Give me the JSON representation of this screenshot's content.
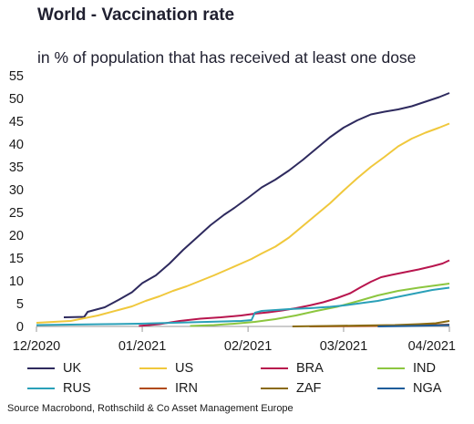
{
  "title": "World - Vaccination rate",
  "subtitle": "in % of population that has received at least one dose",
  "source": "Source Macrobond, Rothschild & Co Asset Management Europe",
  "chart_data": {
    "type": "line",
    "x_ticks": [
      "12/2020",
      "01/2021",
      "02/2021",
      "03/2021",
      "04/2021"
    ],
    "x_tick_days": [
      0,
      31,
      62,
      90,
      121
    ],
    "x_range": [
      0,
      121
    ],
    "ylim": [
      0,
      55
    ],
    "y_ticks": [
      0,
      5,
      10,
      15,
      20,
      25,
      30,
      35,
      40,
      45,
      50,
      55
    ],
    "grid": false,
    "legend_position": "bottom",
    "series": [
      {
        "name": "UK",
        "color": "#2e2a5e",
        "points": [
          [
            8,
            2.0
          ],
          [
            14,
            2.1
          ],
          [
            15,
            3.2
          ],
          [
            20,
            4.2
          ],
          [
            24,
            5.8
          ],
          [
            28,
            7.5
          ],
          [
            31,
            9.5
          ],
          [
            35,
            11.2
          ],
          [
            39,
            13.8
          ],
          [
            43,
            16.8
          ],
          [
            47,
            19.5
          ],
          [
            51,
            22.2
          ],
          [
            55,
            24.5
          ],
          [
            58,
            26.0
          ],
          [
            62,
            28.2
          ],
          [
            66,
            30.5
          ],
          [
            70,
            32.2
          ],
          [
            74,
            34.2
          ],
          [
            78,
            36.5
          ],
          [
            82,
            39.0
          ],
          [
            86,
            41.5
          ],
          [
            90,
            43.6
          ],
          [
            94,
            45.2
          ],
          [
            98,
            46.5
          ],
          [
            102,
            47.1
          ],
          [
            106,
            47.6
          ],
          [
            110,
            48.3
          ],
          [
            114,
            49.3
          ],
          [
            118,
            50.3
          ],
          [
            121,
            51.2
          ]
        ]
      },
      {
        "name": "US",
        "color": "#f0c83c",
        "points": [
          [
            0,
            0.8
          ],
          [
            10,
            1.2
          ],
          [
            18,
            2.4
          ],
          [
            24,
            3.6
          ],
          [
            28,
            4.4
          ],
          [
            32,
            5.6
          ],
          [
            36,
            6.6
          ],
          [
            40,
            7.8
          ],
          [
            44,
            8.8
          ],
          [
            48,
            10.0
          ],
          [
            52,
            11.2
          ],
          [
            56,
            12.5
          ],
          [
            60,
            13.8
          ],
          [
            63,
            14.8
          ],
          [
            66,
            16.0
          ],
          [
            70,
            17.5
          ],
          [
            74,
            19.5
          ],
          [
            78,
            22.0
          ],
          [
            82,
            24.5
          ],
          [
            86,
            27.0
          ],
          [
            90,
            29.8
          ],
          [
            94,
            32.5
          ],
          [
            98,
            35.0
          ],
          [
            102,
            37.2
          ],
          [
            106,
            39.5
          ],
          [
            110,
            41.2
          ],
          [
            114,
            42.5
          ],
          [
            118,
            43.6
          ],
          [
            121,
            44.5
          ]
        ]
      },
      {
        "name": "BRA",
        "color": "#b8154e",
        "points": [
          [
            30,
            0.1
          ],
          [
            36,
            0.5
          ],
          [
            42,
            1.2
          ],
          [
            48,
            1.7
          ],
          [
            54,
            2.0
          ],
          [
            60,
            2.4
          ],
          [
            64,
            2.8
          ],
          [
            68,
            3.1
          ],
          [
            72,
            3.5
          ],
          [
            76,
            4.0
          ],
          [
            80,
            4.6
          ],
          [
            84,
            5.3
          ],
          [
            88,
            6.2
          ],
          [
            92,
            7.3
          ],
          [
            95,
            8.6
          ],
          [
            98,
            9.8
          ],
          [
            101,
            10.8
          ],
          [
            104,
            11.3
          ],
          [
            108,
            11.9
          ],
          [
            112,
            12.5
          ],
          [
            116,
            13.2
          ],
          [
            119,
            13.8
          ],
          [
            121,
            14.5
          ]
        ]
      },
      {
        "name": "IND",
        "color": "#8cc63f",
        "points": [
          [
            45,
            0.1
          ],
          [
            52,
            0.3
          ],
          [
            58,
            0.6
          ],
          [
            64,
            1.0
          ],
          [
            70,
            1.6
          ],
          [
            76,
            2.4
          ],
          [
            82,
            3.4
          ],
          [
            88,
            4.3
          ],
          [
            94,
            5.5
          ],
          [
            100,
            6.8
          ],
          [
            106,
            7.8
          ],
          [
            112,
            8.5
          ],
          [
            118,
            9.1
          ],
          [
            121,
            9.4
          ]
        ]
      },
      {
        "name": "RUS",
        "color": "#2aa0b8",
        "points": [
          [
            0,
            0.3
          ],
          [
            10,
            0.4
          ],
          [
            20,
            0.5
          ],
          [
            30,
            0.6
          ],
          [
            40,
            0.8
          ],
          [
            50,
            1.0
          ],
          [
            60,
            1.2
          ],
          [
            63,
            1.4
          ],
          [
            64,
            3.0
          ],
          [
            66,
            3.4
          ],
          [
            70,
            3.6
          ],
          [
            74,
            3.8
          ],
          [
            80,
            4.0
          ],
          [
            86,
            4.3
          ],
          [
            90,
            4.6
          ],
          [
            96,
            5.2
          ],
          [
            100,
            5.6
          ],
          [
            104,
            6.2
          ],
          [
            108,
            6.8
          ],
          [
            112,
            7.4
          ],
          [
            116,
            8.0
          ],
          [
            121,
            8.5
          ]
        ]
      },
      {
        "name": "IRN",
        "color": "#b04a14",
        "points": [
          [
            80,
            0.0
          ],
          [
            90,
            0.05
          ],
          [
            100,
            0.1
          ],
          [
            110,
            0.2
          ],
          [
            115,
            0.3
          ],
          [
            121,
            0.4
          ]
        ]
      },
      {
        "name": "ZAF",
        "color": "#8a6a10",
        "points": [
          [
            75,
            0.0
          ],
          [
            85,
            0.1
          ],
          [
            95,
            0.2
          ],
          [
            105,
            0.3
          ],
          [
            112,
            0.5
          ],
          [
            117,
            0.7
          ],
          [
            121,
            1.2
          ]
        ]
      },
      {
        "name": "NGA",
        "color": "#1e5c9a",
        "points": [
          [
            100,
            0.0
          ],
          [
            110,
            0.1
          ],
          [
            121,
            0.3
          ]
        ]
      }
    ]
  }
}
